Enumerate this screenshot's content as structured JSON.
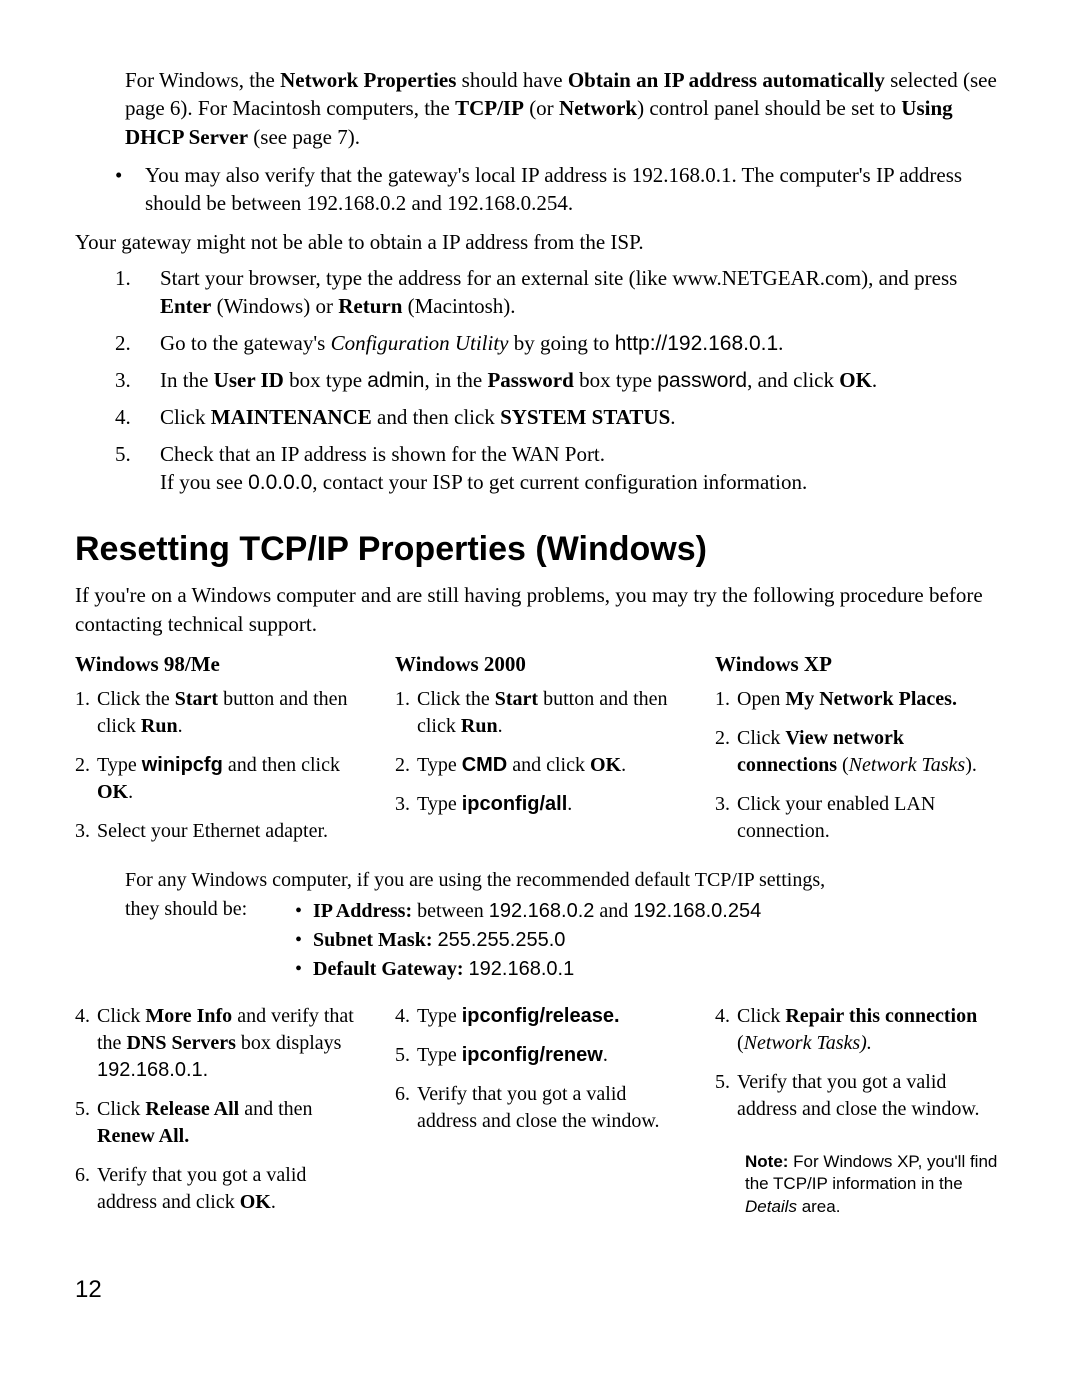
{
  "top": {
    "para1": "For Windows, the <b>Network Properties</b> should have <b>Obtain an IP address automatically</b> selected (see page 6). For Macintosh computers, the <b>TCP/IP</b> (or <b>Network</b>) control panel should be set to <b>Using DHCP Server</b> (see page 7).",
    "bullet1": "You may also verify that the gateway's local IP address is 192.168.0.1. The computer's IP address should be between 192.168.0.2 and 192.168.0.254.",
    "line2": "Your gateway might not be able to obtain a IP address from the ISP.",
    "steps": [
      "Start your browser, type the address for an external site (like www.NETGEAR.com), and press <b>Enter</b> (Windows) or <b>Return</b> (Macintosh).",
      "Go to the gateway's <i>Configuration Utility</i> by going to <span class=\"sans\">http://192.168.0.1</span>.",
      "In the <b>User ID</b> box type <span class=\"sans\">admin</span>, in the <b>Password</b> box type <span class=\"sans\">password</span>, and click <b>OK</b>.",
      "Click <b>MAINTENANCE</b> and then click <b>SYSTEM STATUS</b>.",
      "Check that an IP address is shown for the WAN Port.<br>If you see <span class=\"sans\">0.0.0.0</span>, contact your ISP to get current configuration information."
    ]
  },
  "heading": "Resetting TCP/IP Properties (Windows)",
  "intro": "If you're on a Windows computer and are still having problems, you may try the following procedure before contacting technical support.",
  "cols": {
    "c1": {
      "head": "Windows 98/Me",
      "top": [
        "Click the <b>Start</b> button and then click <b>Run</b>.",
        "Type <b class=\"sans\">winipcfg</b> and then click <b>OK</b>.",
        "Select your Ethernet adapter."
      ],
      "bot": [
        "Click <b>More Info</b> and verify that the <b>DNS Servers</b> box displays <span class=\"sans\">192.168.0.1.</span>",
        "Click <b>Release All</b> and then <b>Renew All.</b>",
        "Verify that you got a valid address and click <b>OK</b>."
      ]
    },
    "c2": {
      "head": "Windows 2000",
      "top": [
        "Click the <b>Start</b> button and then click <b>Run</b>.",
        "Type <b class=\"sans\">CMD</b> and click&nbsp;<b>OK</b>.",
        "Type <b class=\"sans\">ipconfig/all</b>."
      ],
      "bot": [
        "Type <b class=\"sans\">ipconfig/release.</b>",
        "Type <b class=\"sans\">ipconfig/renew</b>.",
        "Verify that you got a valid address and close the window."
      ]
    },
    "c3": {
      "head": "Windows XP",
      "top": [
        "Open <b>My Network Places.</b>",
        "Click <b>View network connections</b> (<i>Network Tasks</i>).",
        "Click your enabled LAN connection."
      ],
      "bot": [
        "Click <b>Repair this connection</b> (<i>Network Tasks).</i>",
        "Verify that you got a valid address and close the window."
      ]
    }
  },
  "mid": {
    "lead": "For any Windows computer, if you are using the recommended default TCP/IP settings, they should be:",
    "bullets": [
      "<b>IP Address:</b> between <span class=\"sans\">192.168.0.2</span> and <span class=\"sans\">192.168.0.254</span>",
      "<b>Subnet Mask:</b> <span class=\"sans\">255.255.255.0</span>",
      "<b>Default Gateway:</b> <span class=\"sans\">192.168.0.1</span>"
    ]
  },
  "note": "<b>Note:</b> For Windows XP, you'll find the TCP/IP information in the <i>Details</i> area.",
  "pagenum": "12"
}
